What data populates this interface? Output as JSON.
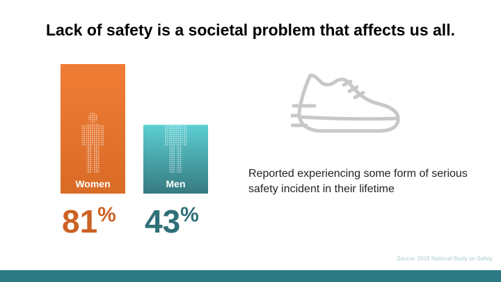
{
  "title": "Lack of safety is a societal problem that affects us all.",
  "chart_data": {
    "type": "bar",
    "categories": [
      "Women",
      "Men"
    ],
    "values": [
      81,
      43
    ],
    "value_labels": [
      "81",
      "43"
    ],
    "unit": "%",
    "ylim": [
      0,
      81
    ],
    "colors": [
      "#e87a2f",
      "#3f9fa5"
    ],
    "gradient_top": [
      "#f07d35",
      "#5ccfd3"
    ],
    "gradient_bottom": [
      "#d96b27",
      "#357a80"
    ],
    "value_colors": [
      "#cc6224",
      "#2f6f78"
    ]
  },
  "description": "Reported experiencing some form of serious safety incident in their lifetime",
  "source": "Source: 2018 National Study on Safety",
  "colors": {
    "band": "#2e7a84",
    "icon_gray": "#c8c8c8"
  }
}
